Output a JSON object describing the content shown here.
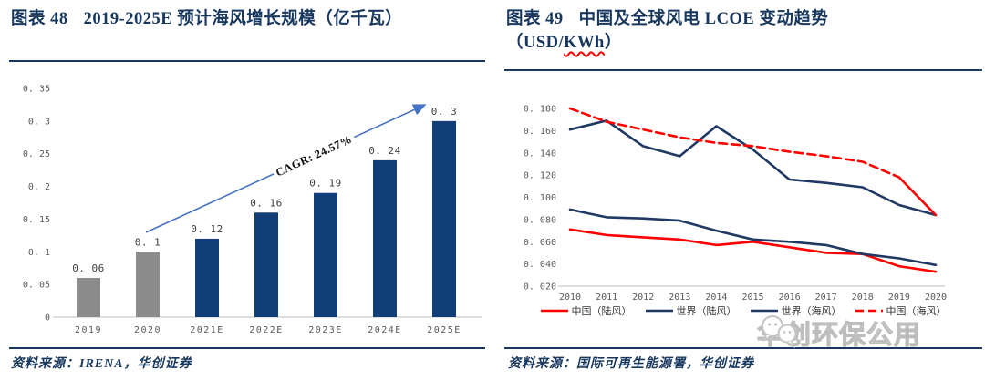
{
  "figure48": {
    "title_label": "图表 48",
    "title_text": "2019-2025E 预计海风增长规模（亿千瓦）",
    "source": "资料来源：IRENA，华创证券"
  },
  "figure49": {
    "title_label": "图表 49",
    "title_text": "中国及全球风电 LCOE 变动趋势",
    "unit_prefix": "（USD/",
    "unit_wavy": "KWh",
    "unit_suffix": "）",
    "source": "资料来源：国际可再生能源署，华创证券"
  },
  "watermark": {
    "text": "华创环保公用",
    "icon": "wechat-chat-bubbles-icon"
  },
  "colors": {
    "accent_navy": "#17375E",
    "bar_navy": "#123E78",
    "bar_gray": "#8C8C8C",
    "line_navy": "#1F3864",
    "line_red": "#FF0000",
    "arrow_blue": "#4472C4",
    "axis_gray": "#BFBFBF",
    "tick_gray": "#595959",
    "watermark_gray": "#BDBDBD"
  },
  "chart_data": [
    {
      "type": "bar",
      "title": "2019-2025E 预计海风增长规模（亿千瓦）",
      "categories": [
        "2019",
        "2020",
        "2021E",
        "2022E",
        "2023E",
        "2024E",
        "2025E"
      ],
      "values": [
        0.06,
        0.1,
        0.12,
        0.16,
        0.19,
        0.24,
        0.3
      ],
      "bar_labels": [
        "0. 06",
        "0. 1",
        "0. 12",
        "0. 16",
        "0. 19",
        "0. 24",
        "0. 3"
      ],
      "bar_colors": [
        "#8C8C8C",
        "#8C8C8C",
        "#123E78",
        "#123E78",
        "#123E78",
        "#123E78",
        "#123E78"
      ],
      "y_ticks": [
        0,
        0.05,
        0.1,
        0.15,
        0.2,
        0.25,
        0.3,
        0.35
      ],
      "y_tick_labels": [
        "0",
        "0. 05",
        "0. 1",
        "0. 15",
        "0. 2",
        "0. 25",
        "0. 3",
        "0. 35"
      ],
      "ylim": [
        0,
        0.35
      ],
      "xlabel": "",
      "ylabel": "",
      "grid": false,
      "annotation": {
        "text": "CAGR: 24.57%",
        "arrow_color": "#4472C4"
      }
    },
    {
      "type": "line",
      "title": "中国及全球风电 LCOE 变动趋势（USD/KWh）",
      "x": [
        2010,
        2011,
        2012,
        2013,
        2014,
        2015,
        2016,
        2017,
        2018,
        2019,
        2020
      ],
      "series": [
        {
          "name": "中国（陆风）",
          "color": "#FF0000",
          "dashed": false,
          "values": [
            0.071,
            0.066,
            0.064,
            0.062,
            0.057,
            0.06,
            0.055,
            0.05,
            0.049,
            0.038,
            0.033
          ]
        },
        {
          "name": "世界（陆风）",
          "color": "#1F3864",
          "dashed": false,
          "values": [
            0.089,
            0.082,
            0.081,
            0.079,
            0.07,
            0.062,
            0.06,
            0.057,
            0.049,
            0.045,
            0.039
          ]
        },
        {
          "name": "世界（海风）",
          "color": "#1F3864",
          "dashed": false,
          "values": [
            0.161,
            0.169,
            0.146,
            0.137,
            0.164,
            0.143,
            0.116,
            0.113,
            0.109,
            0.093,
            0.084
          ]
        },
        {
          "name": "中国（海风）",
          "color": "#FF0000",
          "dashed": true,
          "last_segment_solid": true,
          "values": [
            0.18,
            0.168,
            0.161,
            0.154,
            0.149,
            0.146,
            0.141,
            0.137,
            0.132,
            0.118,
            0.084
          ]
        }
      ],
      "y_ticks": [
        0.02,
        0.04,
        0.06,
        0.08,
        0.1,
        0.12,
        0.14,
        0.16,
        0.18
      ],
      "y_tick_labels": [
        "0. 020",
        "0. 040",
        "0. 060",
        "0. 080",
        "0. 100",
        "0. 120",
        "0. 140",
        "0. 160",
        "0. 180"
      ],
      "ylim": [
        0.02,
        0.19
      ],
      "grid": false,
      "legend_position": "bottom"
    }
  ]
}
